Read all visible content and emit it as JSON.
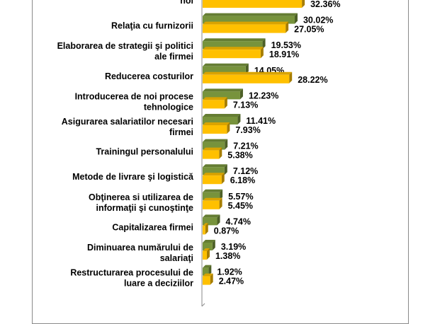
{
  "chart_data": {
    "type": "bar",
    "orientation": "horizontal",
    "style": "3d-clustered",
    "categories": [
      "noi",
      "Relaţia cu furnizorii",
      "Elaborarea de strategii şi politici\nale firmei",
      "Reducerea costurilor",
      "Introducerea de noi procese\ntehnologice",
      "Asigurarea salariatilor necesari\nfirmei",
      "Trainingul personalului",
      "Metode de livrare şi  logistică",
      "Obţinerea si utilizarea de\ninformaţii şi cunoştinţe",
      "Capitalizarea firmei",
      "Diminuarea numărului de\nsalariaţi",
      "Restructurarea procesului de\nluare a deciziilor"
    ],
    "series": [
      {
        "name": "series-green",
        "color": "#77933C",
        "values": [
          null,
          30.02,
          19.53,
          14.05,
          12.23,
          11.41,
          7.21,
          7.12,
          5.57,
          4.74,
          3.19,
          1.92
        ],
        "labels": [
          "",
          "30.02%",
          "19.53%",
          "14.05%",
          "12.23%",
          "11.41%",
          "7.21%",
          "7.12%",
          "5.57%",
          "4.74%",
          "3.19%",
          "1.92%"
        ]
      },
      {
        "name": "series-yellow",
        "color": "#FFC000",
        "values": [
          32.36,
          27.05,
          18.91,
          28.22,
          7.13,
          7.93,
          5.38,
          6.18,
          5.45,
          0.87,
          1.38,
          2.47
        ],
        "labels": [
          "32.36%",
          "27.05%",
          "18.91%",
          "28.22%",
          "7.13%",
          "7.93%",
          "5.38%",
          "6.18%",
          "5.45%",
          "0.87%",
          "1.38%",
          "2.47%"
        ]
      }
    ],
    "unit": "%",
    "title": "",
    "xlabel": "",
    "ylabel": "",
    "grid": false,
    "legend": "none"
  }
}
